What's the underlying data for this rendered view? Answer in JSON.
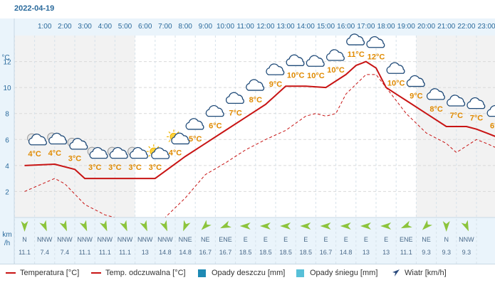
{
  "date": "2022-04-19",
  "chart_data": {
    "type": "line",
    "hours": [
      "1:00",
      "2:00",
      "3:00",
      "4:00",
      "5:00",
      "6:00",
      "7:00",
      "8:00",
      "9:00",
      "10:00",
      "11:00",
      "12:00",
      "13:00",
      "14:00",
      "15:00",
      "16:00",
      "17:00",
      "18:00",
      "19:00",
      "20:00",
      "21:00",
      "22:00",
      "23:00"
    ],
    "y_unit": "°C",
    "y_ticks": [
      2,
      4,
      6,
      8,
      10,
      12
    ],
    "ylim": [
      0,
      14
    ],
    "temperature_labels": [
      "4°C",
      "4°C",
      "3°C",
      "3°C",
      "3°C",
      "3°C",
      "3°C",
      "4°C",
      "5°C",
      "6°C",
      "7°C",
      "8°C",
      "9°C",
      "10°C",
      "10°C",
      "10°C",
      "11°C",
      "12°C",
      "10°C",
      "9°C",
      "8°C",
      "7°C",
      "7°C",
      "6°C"
    ],
    "temperature_label_x": [
      0.5,
      1.5,
      2.5,
      3.5,
      4.5,
      5.5,
      6.5,
      7.5,
      8.5,
      9.5,
      10.5,
      11.5,
      12.5,
      13.5,
      14.5,
      15.5,
      16.5,
      17.5,
      18.5,
      19.5,
      20.5,
      21.5,
      22.5,
      23.5
    ],
    "series": [
      {
        "name": "Temperatura [°C]",
        "style": "solid",
        "color": "#c81414",
        "x": [
          0,
          1.5,
          2.5,
          3,
          4,
          5,
          6,
          6.5,
          8,
          9,
          10,
          11,
          12,
          13,
          14,
          15,
          16,
          16.5,
          17,
          17.5,
          18,
          18.5,
          19,
          20,
          21,
          21.5,
          22,
          22.5,
          23,
          24
        ],
        "y": [
          4.0,
          4.1,
          3.7,
          3.0,
          3.0,
          3.0,
          3.0,
          3.0,
          4.7,
          5.7,
          6.7,
          7.7,
          8.7,
          10.1,
          10.1,
          10.0,
          11.0,
          11.7,
          12.0,
          11.5,
          10.0,
          9.5,
          9.0,
          8.0,
          7.0,
          7.0,
          7.0,
          6.8,
          6.5,
          5.9
        ]
      },
      {
        "name": "Temp. odczuwalna [°C]",
        "style": "dashed",
        "color": "#c81414",
        "x": [
          0,
          1.5,
          2,
          3,
          4,
          4.5,
          6,
          7,
          8,
          9,
          10,
          11,
          12,
          13,
          14,
          14.5,
          15,
          15.5,
          16,
          17,
          17.5,
          18,
          19,
          20,
          21,
          21.5,
          22,
          22.5,
          23,
          24
        ],
        "y": [
          2.0,
          3.0,
          2.6,
          1.0,
          0.2,
          0.0,
          0.0,
          0.0,
          1.5,
          3.3,
          4.2,
          5.2,
          6.0,
          6.7,
          7.8,
          8.0,
          7.8,
          8.0,
          9.5,
          11.0,
          11.0,
          10.0,
          8.0,
          6.5,
          5.7,
          5.0,
          5.5,
          6.0,
          5.7,
          5.0
        ]
      }
    ],
    "wind_directions": [
      "N",
      "NNW",
      "NNW",
      "NNW",
      "NNW",
      "NNW",
      "NNW",
      "NNW",
      "NNE",
      "NE",
      "ENE",
      "E",
      "E",
      "E",
      "E",
      "E",
      "E",
      "E",
      "E",
      "ENE",
      "NE",
      "N",
      "NNW"
    ],
    "wind_speeds": [
      "11.1",
      "7.4",
      "7.4",
      "11.1",
      "11.1",
      "11.1",
      "13",
      "14.8",
      "14.8",
      "16.7",
      "16.7",
      "18.5",
      "18.5",
      "18.5",
      "18.5",
      "16.7",
      "14.8",
      "13",
      "13",
      "11.1",
      "9.3",
      "9.3",
      "9.3"
    ],
    "wind_unit_line1": "km",
    "wind_unit_line2": "/h",
    "legend": {
      "temperature": "Temperatura [°C]",
      "feels_like": "Temp. odczuwalna [°C]",
      "rain": "Opady deszczu [mm]",
      "snow": "Opady śniegu [mm]",
      "wind": "Wiatr [km/h]"
    },
    "colors": {
      "line": "#c81414",
      "label": "#e08a00",
      "rain": "#1e8ab4",
      "snow": "#58c0d8",
      "wind_arrow": "#8cc43c",
      "axis_text": "#2a6a9c",
      "night_bg": "#f2f2f2"
    }
  }
}
